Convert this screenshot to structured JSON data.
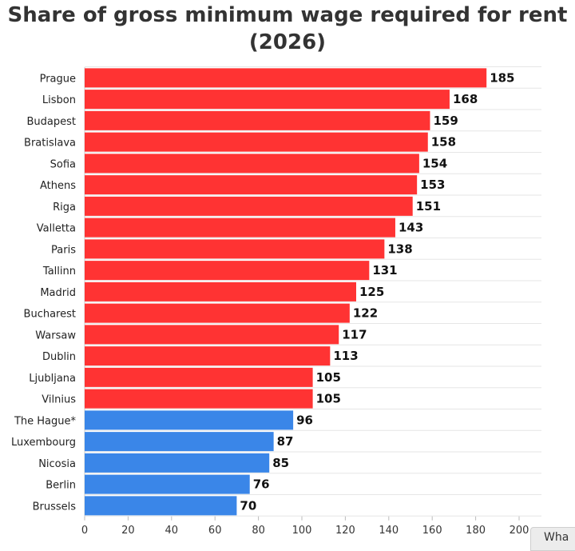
{
  "chart_data": {
    "type": "bar",
    "orientation": "horizontal",
    "title": "Share of gross minimum wage required for rent (2026)",
    "xlabel": "",
    "ylabel": "",
    "categories": [
      "Prague",
      "Lisbon",
      "Budapest",
      "Bratislava",
      "Sofia",
      "Athens",
      "Riga",
      "Valletta",
      "Paris",
      "Tallinn",
      "Madrid",
      "Bucharest",
      "Warsaw",
      "Dublin",
      "Ljubljana",
      "Vilnius",
      "The Hague*",
      "Luxembourg",
      "Nicosia",
      "Berlin",
      "Brussels"
    ],
    "values": [
      185,
      168,
      159,
      158,
      154,
      153,
      151,
      143,
      138,
      131,
      125,
      122,
      117,
      113,
      105,
      105,
      96,
      87,
      85,
      76,
      70
    ],
    "xlim": [
      0,
      200
    ],
    "xticks": [
      0,
      20,
      40,
      60,
      80,
      100,
      120,
      140,
      160,
      180,
      200
    ],
    "grid": true,
    "colors": {
      "above_100": "#ff3333",
      "below_100": "#3a86e8"
    }
  },
  "corner_text": "Wha"
}
